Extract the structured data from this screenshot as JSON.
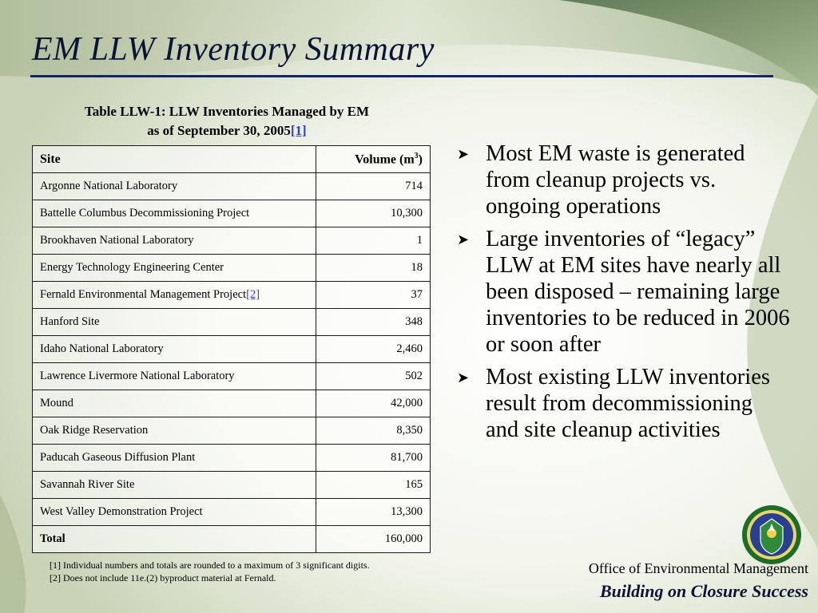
{
  "slide": {
    "title": "EM LLW Inventory Summary"
  },
  "table": {
    "caption_line1": "Table LLW-1: LLW Inventories Managed by EM",
    "caption_line2": "as of September 30, 2005",
    "caption_ref": "[1]",
    "header_site": "Site",
    "header_volume": "Volume (m",
    "header_volume_sup": "3",
    "header_volume_close": ")",
    "rows": [
      {
        "site": "Argonne National Laboratory",
        "ref": "",
        "volume": "714"
      },
      {
        "site": "Battelle Columbus Decommissioning Project",
        "ref": "",
        "volume": "10,300"
      },
      {
        "site": "Brookhaven National Laboratory",
        "ref": "",
        "volume": "1"
      },
      {
        "site": "Energy Technology Engineering Center",
        "ref": "",
        "volume": "18"
      },
      {
        "site": "Fernald Environmental Management Project",
        "ref": "[2]",
        "volume": "37"
      },
      {
        "site": "Hanford Site",
        "ref": "",
        "volume": "348"
      },
      {
        "site": "Idaho National Laboratory",
        "ref": "",
        "volume": "2,460"
      },
      {
        "site": "Lawrence Livermore National Laboratory",
        "ref": "",
        "volume": "502"
      },
      {
        "site": "Mound",
        "ref": "",
        "volume": "42,000"
      },
      {
        "site": "Oak Ridge Reservation",
        "ref": "",
        "volume": "8,350"
      },
      {
        "site": "Paducah Gaseous Diffusion Plant",
        "ref": "",
        "volume": "81,700"
      },
      {
        "site": "Savannah River Site",
        "ref": "",
        "volume": "165"
      },
      {
        "site": "West Valley Demonstration Project",
        "ref": "",
        "volume": "13,300"
      }
    ],
    "total_label": "Total",
    "total_value": "160,000"
  },
  "footnotes": [
    {
      "ref": "[1]",
      "text": "Individual numbers and totals are rounded to a maximum of 3 significant digits."
    },
    {
      "ref": "[2]",
      "text": "Does not include 11e.(2) byproduct material at Fernald."
    }
  ],
  "bullets": [
    "Most EM waste is generated from cleanup projects vs. ongoing operations",
    "Large inventories of “legacy” LLW at EM sites have nearly all been disposed – remaining large inventories to be reduced in 2006 or soon after",
    "Most existing LLW inventories result from decommissioning and site cleanup activities"
  ],
  "footer": {
    "office": "Office of Environmental Management",
    "tagline": "Building on Closure Success",
    "seal_icon": "doe-seal-icon"
  },
  "colors": {
    "title": "#0b1436",
    "rule": "#14246a",
    "background_green": "#6f8a5e",
    "link": "#3344cc"
  }
}
